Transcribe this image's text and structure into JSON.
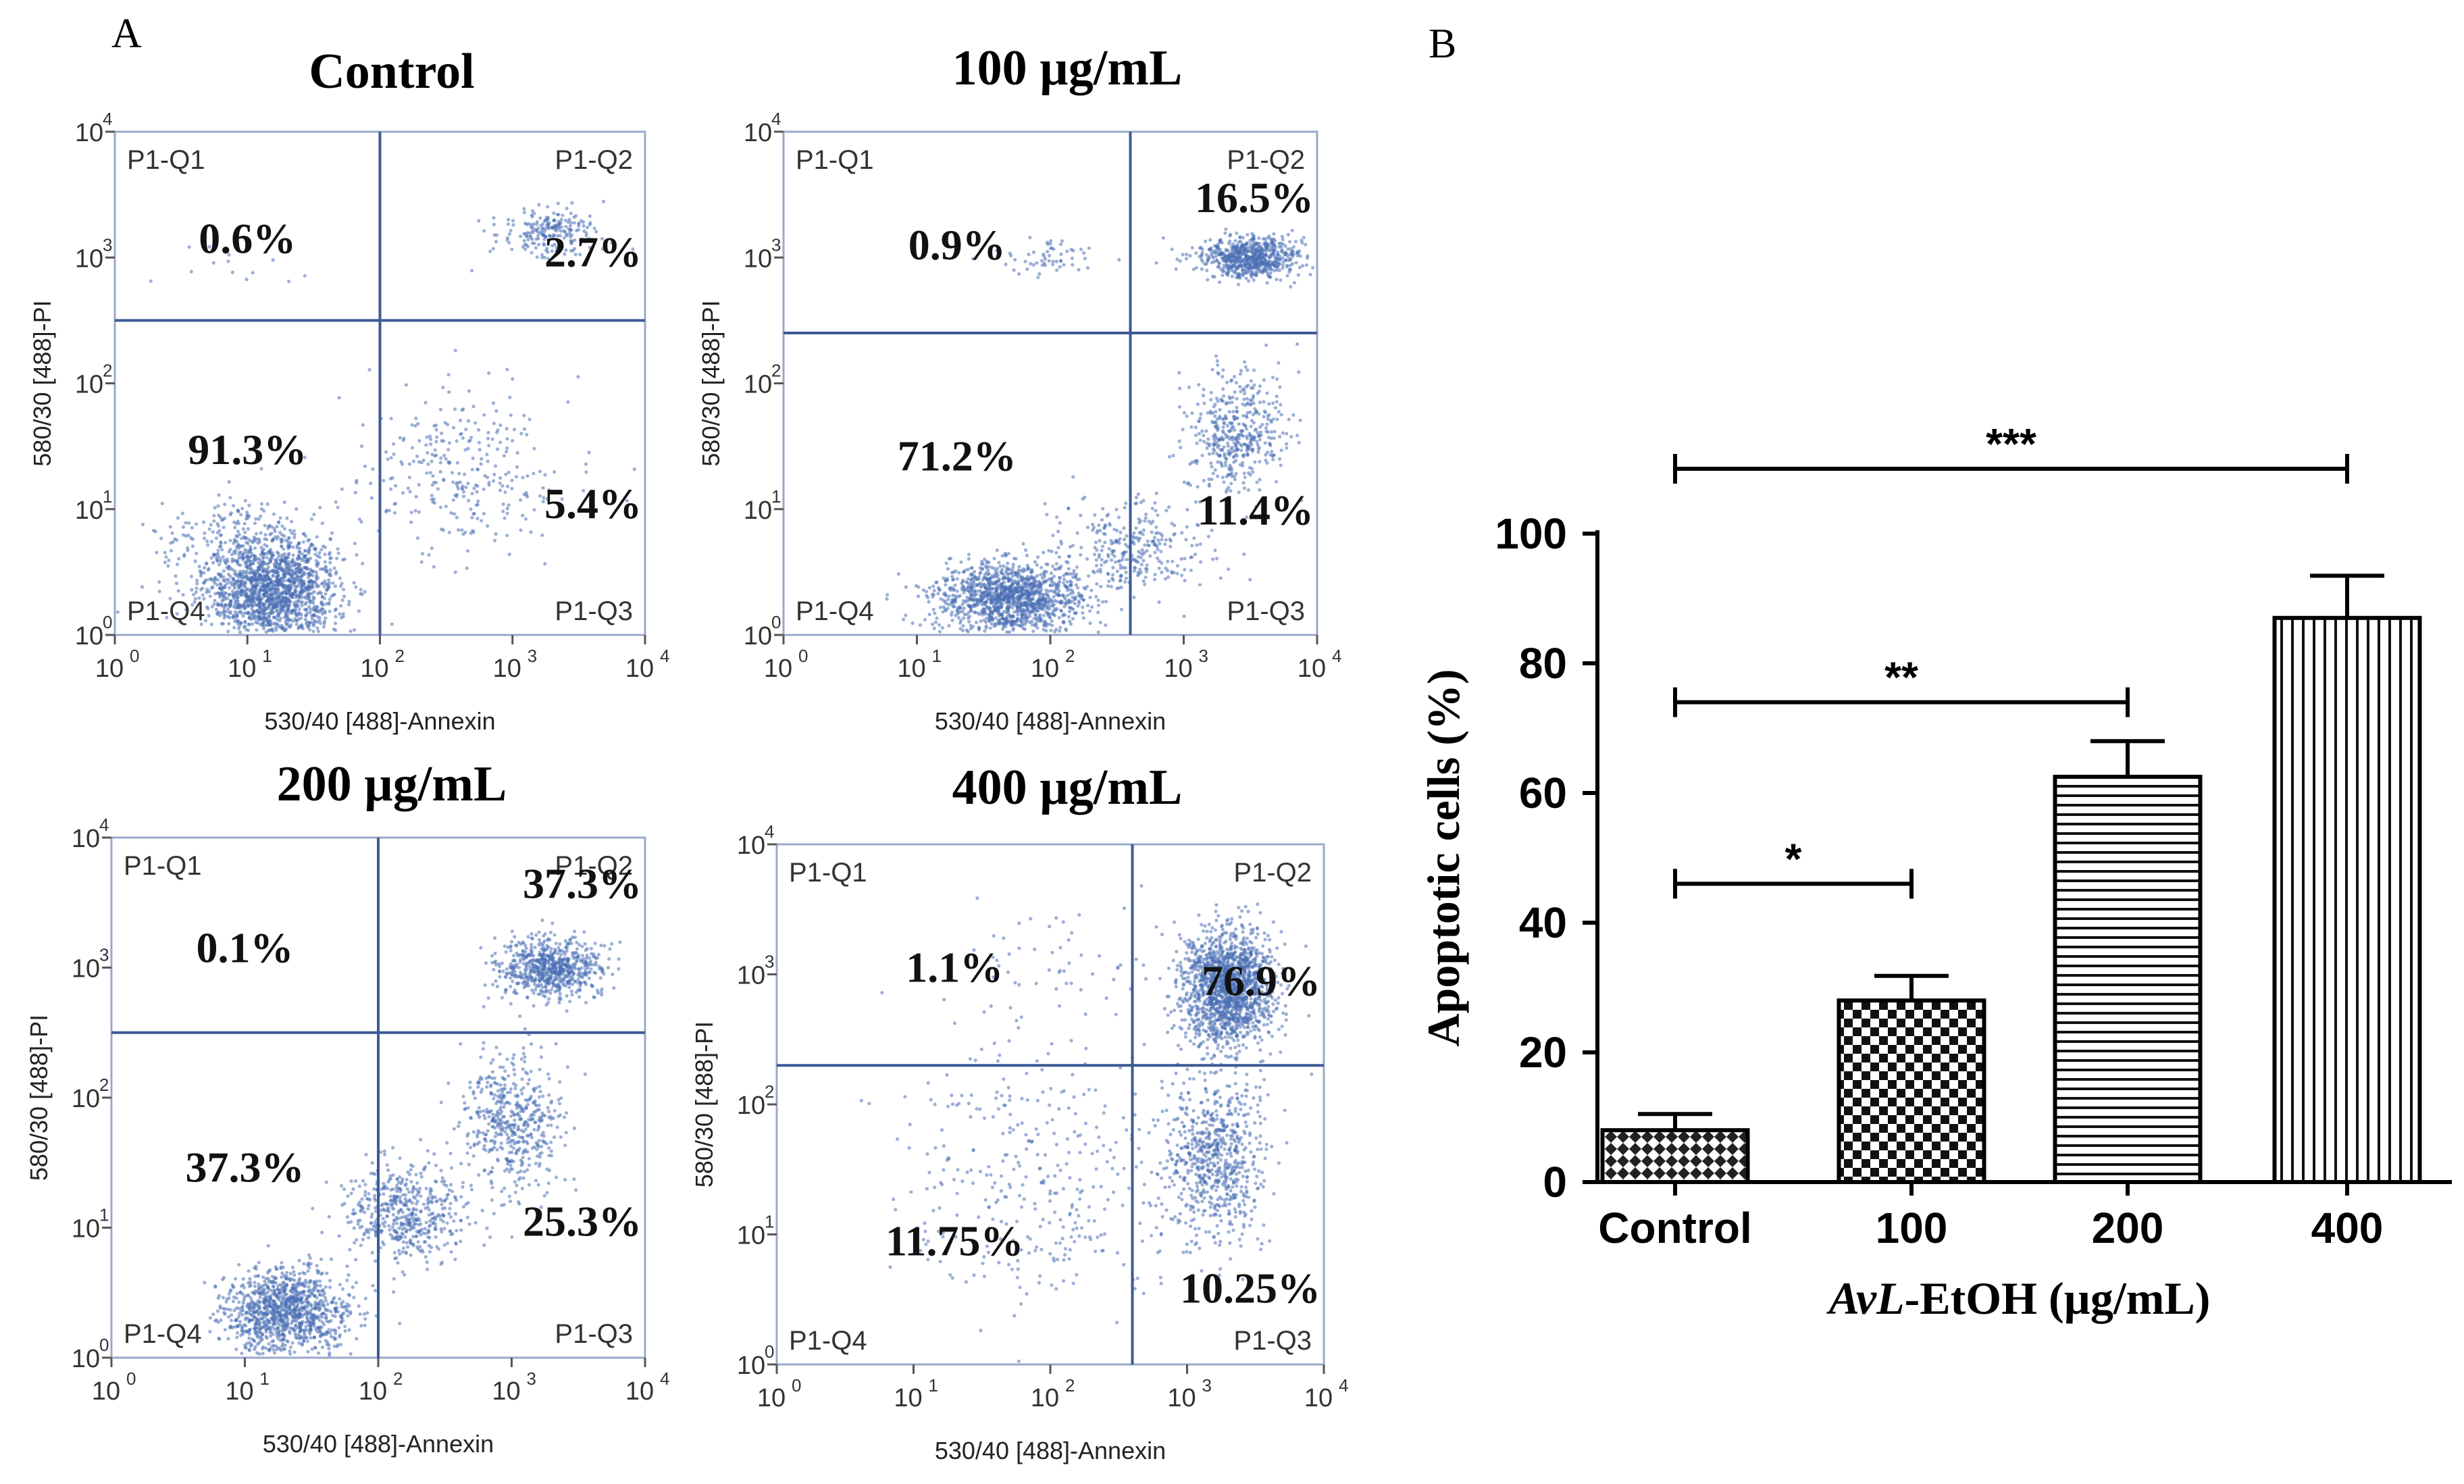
{
  "panel_a_letter": "A",
  "panel_b_letter": "B",
  "chart_data": [
    {
      "type": "scatter",
      "title": "Control",
      "xlabel": "530/40 [488]-Annexin",
      "ylabel": "580/30 [488]-PI",
      "x_ticks": [
        "0",
        "1",
        "2",
        "3",
        "4"
      ],
      "y_ticks": [
        "0",
        "1",
        "2",
        "3",
        "4"
      ],
      "quadrant_labels": {
        "q1": "P1-Q1",
        "q2": "P1-Q2",
        "q3": "P1-Q3",
        "q4": "P1-Q4"
      },
      "gate": {
        "x_log": 2.0,
        "y_log": 2.5
      },
      "quadrant_percent": {
        "q1": "0.6%",
        "q2": "2.7%",
        "q3": "5.4%",
        "q4": "91.3%"
      },
      "populations": [
        {
          "cx": 1.2,
          "cy": 0.35,
          "sx": 0.45,
          "sy": 0.35,
          "count": 1500
        },
        {
          "cx": 1.0,
          "cy": 0.7,
          "sx": 0.6,
          "sy": 0.4,
          "count": 300
        },
        {
          "cx": 2.6,
          "cy": 1.3,
          "sx": 0.7,
          "sy": 0.6,
          "count": 300
        },
        {
          "cx": 3.3,
          "cy": 3.2,
          "sx": 0.35,
          "sy": 0.18,
          "count": 220
        },
        {
          "cx": 1.0,
          "cy": 2.9,
          "sx": 0.5,
          "sy": 0.3,
          "count": 15
        }
      ]
    },
    {
      "type": "scatter",
      "title": "100 µg/mL",
      "xlabel": "530/40 [488]-Annexin",
      "ylabel": "580/30 [488]-PI",
      "x_ticks": [
        "0",
        "1",
        "2",
        "3",
        "4"
      ],
      "y_ticks": [
        "0",
        "1",
        "2",
        "3",
        "4"
      ],
      "quadrant_labels": {
        "q1": "P1-Q1",
        "q2": "P1-Q2",
        "q3": "P1-Q3",
        "q4": "P1-Q4"
      },
      "gate": {
        "x_log": 2.6,
        "y_log": 2.4
      },
      "quadrant_percent": {
        "q1": "0.9%",
        "q2": "16.5%",
        "q3": "11.4%",
        "q4": "71.2%"
      },
      "populations": [
        {
          "cx": 1.7,
          "cy": 0.3,
          "sx": 0.5,
          "sy": 0.25,
          "count": 1300
        },
        {
          "cx": 2.6,
          "cy": 0.7,
          "sx": 0.5,
          "sy": 0.35,
          "count": 300
        },
        {
          "cx": 3.4,
          "cy": 1.6,
          "sx": 0.35,
          "sy": 0.45,
          "count": 450
        },
        {
          "cx": 3.5,
          "cy": 3.0,
          "sx": 0.35,
          "sy": 0.15,
          "count": 700
        },
        {
          "cx": 2.0,
          "cy": 3.0,
          "sx": 0.4,
          "sy": 0.15,
          "count": 60
        }
      ]
    },
    {
      "type": "scatter",
      "title": "200 µg/mL",
      "xlabel": "530/40 [488]-Annexin",
      "ylabel": "580/30 [488]-PI",
      "x_ticks": [
        "0",
        "1",
        "2",
        "3",
        "4"
      ],
      "y_ticks": [
        "0",
        "1",
        "2",
        "3",
        "4"
      ],
      "quadrant_labels": {
        "q1": "P1-Q1",
        "q2": "P1-Q2",
        "q3": "P1-Q3",
        "q4": "P1-Q4"
      },
      "gate": {
        "x_log": 2.0,
        "y_log": 2.5
      },
      "quadrant_percent": {
        "q1": "0.1%",
        "q2": "37.3%",
        "q3": "25.3%",
        "q4": "37.3%"
      },
      "populations": [
        {
          "cx": 1.3,
          "cy": 0.35,
          "sx": 0.4,
          "sy": 0.3,
          "count": 1100
        },
        {
          "cx": 2.2,
          "cy": 1.1,
          "sx": 0.4,
          "sy": 0.35,
          "count": 500
        },
        {
          "cx": 3.0,
          "cy": 1.8,
          "sx": 0.35,
          "sy": 0.5,
          "count": 500
        },
        {
          "cx": 3.3,
          "cy": 3.0,
          "sx": 0.35,
          "sy": 0.2,
          "count": 700
        }
      ]
    },
    {
      "type": "scatter",
      "title": "400 µg/mL",
      "xlabel": "530/40 [488]-Annexin",
      "ylabel": "580/30 [488]-PI",
      "x_ticks": [
        "0",
        "1",
        "2",
        "3",
        "4"
      ],
      "y_ticks": [
        "0",
        "1",
        "2",
        "3",
        "4"
      ],
      "quadrant_labels": {
        "q1": "P1-Q1",
        "q2": "P1-Q2",
        "q3": "P1-Q3",
        "q4": "P1-Q4"
      },
      "gate": {
        "x_log": 2.6,
        "y_log": 2.3
      },
      "quadrant_percent": {
        "q1": "1.1%",
        "q2": "76.9%",
        "q3": "10.25%",
        "q4": "11.75%"
      },
      "populations": [
        {
          "cx": 3.3,
          "cy": 2.9,
          "sx": 0.3,
          "sy": 0.4,
          "count": 1600
        },
        {
          "cx": 3.2,
          "cy": 1.6,
          "sx": 0.35,
          "sy": 0.6,
          "count": 700
        },
        {
          "cx": 2.0,
          "cy": 1.4,
          "sx": 1.0,
          "sy": 0.9,
          "count": 350
        },
        {
          "cx": 2.0,
          "cy": 3.0,
          "sx": 0.8,
          "sy": 0.5,
          "count": 60
        }
      ]
    },
    {
      "type": "bar",
      "categories": [
        "Control",
        "100",
        "200",
        "400"
      ],
      "values": [
        8,
        28,
        62.5,
        87
      ],
      "errors": [
        2.5,
        3.8,
        5.5,
        6.5
      ],
      "patterns": [
        "diamond",
        "checker",
        "hlines",
        "vlines"
      ],
      "ylabel": "Apoptotic cells (%)",
      "xlabel_italic": "AvL",
      "xlabel_rest": "-EtOH (µg/mL)",
      "ylim": [
        0,
        100
      ],
      "yticks": [
        "0",
        "20",
        "40",
        "60",
        "80",
        "100"
      ],
      "significance": [
        {
          "from": 0,
          "to": 1,
          "level": 46,
          "label": "*"
        },
        {
          "from": 0,
          "to": 2,
          "level": 74,
          "label": "**"
        },
        {
          "from": 0,
          "to": 3,
          "level": 110,
          "label": "***"
        }
      ]
    }
  ]
}
